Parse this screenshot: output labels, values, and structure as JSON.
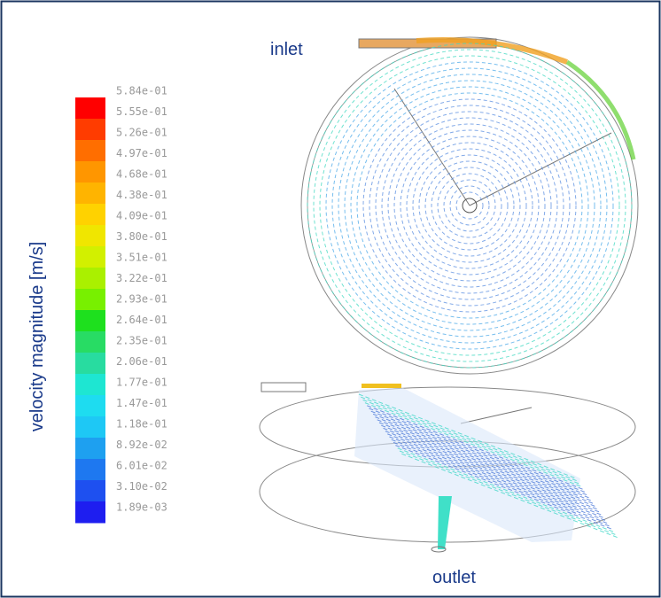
{
  "labels": {
    "inlet": "inlet",
    "outlet": "outlet"
  },
  "colorbar": {
    "title": "velocity magnitude [m/s]",
    "ticks": [
      "5.84e-01",
      "5.55e-01",
      "5.26e-01",
      "4.97e-01",
      "4.68e-01",
      "4.38e-01",
      "4.09e-01",
      "3.80e-01",
      "3.51e-01",
      "3.22e-01",
      "2.93e-01",
      "2.64e-01",
      "2.35e-01",
      "2.06e-01",
      "1.77e-01",
      "1.47e-01",
      "1.18e-01",
      "8.92e-02",
      "6.01e-02",
      "3.10e-02",
      "1.89e-03"
    ],
    "colors": [
      "#ff0000",
      "#ff3c00",
      "#ff6e00",
      "#ff9600",
      "#ffb400",
      "#ffd200",
      "#f0e600",
      "#d2f000",
      "#aaf000",
      "#78f000",
      "#1ee01e",
      "#28dc64",
      "#28dca0",
      "#1ee6d2",
      "#1edcf0",
      "#1ec8f5",
      "#1ea0f0",
      "#1e78f0",
      "#1e50f0",
      "#1e1ef0"
    ]
  }
}
